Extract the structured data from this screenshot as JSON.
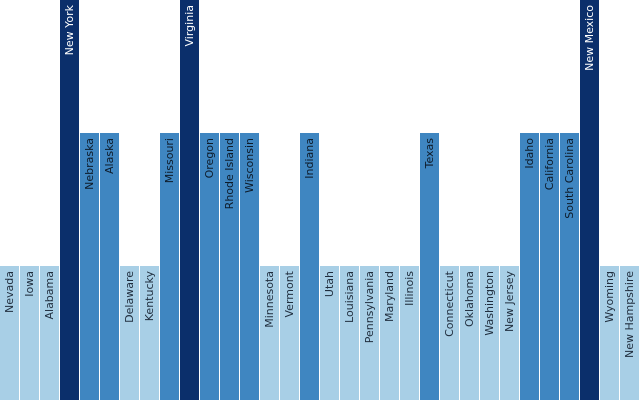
{
  "chart_data": {
    "type": "bar",
    "categories": [
      "Nevada",
      "Iowa",
      "Alabama",
      "New York",
      "Nebraska",
      "Alaska",
      "Delaware",
      "Kentucky",
      "Missouri",
      "Virginia",
      "Oregon",
      "Rhode Island",
      "Wisconsin",
      "Minnesota",
      "Vermont",
      "Indiana",
      "Utah",
      "Louisiana",
      "Pennsylvania",
      "Maryland",
      "Illinois",
      "Texas",
      "Connecticut",
      "Oklahoma",
      "Washington",
      "New Jersey",
      "Idaho",
      "California",
      "South Carolina",
      "New Mexico",
      "Wyoming",
      "New Hampshire"
    ],
    "values": [
      1,
      1,
      1,
      3,
      2,
      2,
      1,
      1,
      2,
      3,
      2,
      2,
      2,
      1,
      1,
      2,
      1,
      1,
      1,
      1,
      1,
      2,
      1,
      1,
      1,
      1,
      2,
      2,
      2,
      3,
      1,
      1
    ],
    "ylim": [
      0,
      3
    ],
    "grid": false,
    "legend": "none",
    "colors": {
      "1": "#a8cfe6",
      "2": "#3f86c1",
      "3": "#0b2f6b"
    },
    "label_colors": {
      "1": "#1f2d3d",
      "2": "#0d1b2a",
      "3": "#ffffff"
    }
  }
}
